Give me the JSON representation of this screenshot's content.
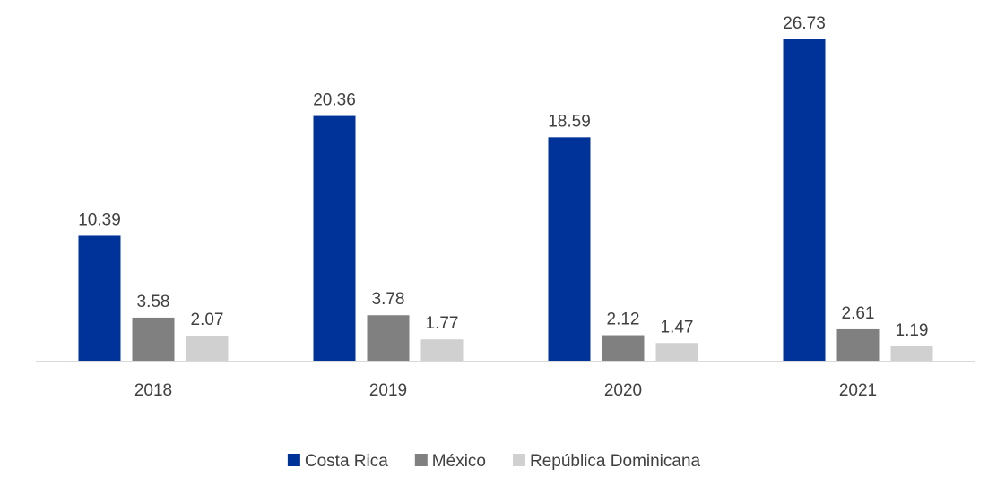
{
  "chart_data": {
    "type": "bar",
    "title": "",
    "xlabel": "",
    "ylabel": "",
    "categories": [
      "2018",
      "2019",
      "2020",
      "2021"
    ],
    "series": [
      {
        "name": "Costa Rica",
        "color": "#003399",
        "values": [
          10.39,
          20.36,
          18.59,
          26.73
        ]
      },
      {
        "name": "México",
        "color": "#808080",
        "values": [
          3.58,
          3.78,
          2.12,
          2.61
        ]
      },
      {
        "name": "República Dominicana",
        "color": "#d0d0d0",
        "values": [
          2.07,
          1.77,
          1.47,
          1.19
        ]
      }
    ],
    "ylim": [
      0,
      26.73
    ],
    "grid": false,
    "legend": "bottom",
    "data_labels": true
  }
}
